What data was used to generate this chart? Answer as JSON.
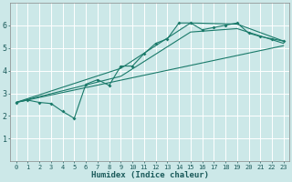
{
  "title": "",
  "xlabel": "Humidex (Indice chaleur)",
  "bg_color": "#cce8e8",
  "line_color": "#1a7a6a",
  "grid_color": "#ffffff",
  "xlim": [
    -0.5,
    23.5
  ],
  "ylim": [
    0,
    7
  ],
  "yticks": [
    1,
    2,
    3,
    4,
    5,
    6
  ],
  "xticks": [
    0,
    1,
    2,
    3,
    4,
    5,
    6,
    7,
    8,
    9,
    10,
    11,
    12,
    13,
    14,
    15,
    16,
    17,
    18,
    19,
    20,
    21,
    22,
    23
  ],
  "line_zigzag": {
    "x": [
      0,
      1,
      2,
      3,
      4,
      5,
      6,
      7,
      8,
      9,
      10,
      11,
      12,
      13,
      14,
      15,
      16,
      17,
      18,
      19,
      20,
      21,
      22,
      23
    ],
    "y": [
      2.6,
      2.7,
      2.6,
      2.55,
      2.2,
      1.9,
      3.4,
      3.6,
      3.35,
      4.2,
      4.2,
      4.75,
      5.2,
      5.4,
      6.1,
      6.1,
      5.8,
      5.9,
      6.0,
      6.1,
      5.65,
      5.5,
      5.4,
      5.3
    ]
  },
  "line_upper": {
    "x": [
      0,
      9,
      15,
      19,
      23
    ],
    "y": [
      2.6,
      4.1,
      6.1,
      6.05,
      5.3
    ]
  },
  "line_mid": {
    "x": [
      0,
      9,
      15,
      19,
      23
    ],
    "y": [
      2.6,
      3.75,
      5.7,
      5.85,
      5.2
    ]
  },
  "line_lower": {
    "x": [
      0,
      23
    ],
    "y": [
      2.6,
      5.1
    ]
  }
}
